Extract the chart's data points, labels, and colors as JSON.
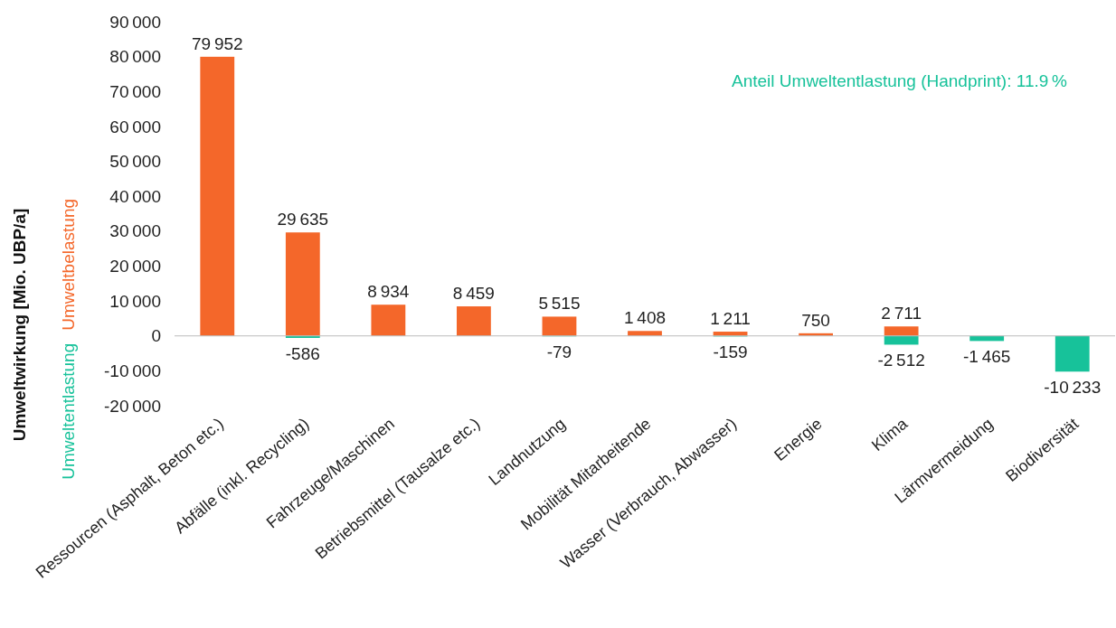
{
  "chart_data": {
    "type": "bar",
    "stacked": true,
    "ylabel": "Umweltwirkung [Mio. UBP/a]",
    "legend": "left",
    "categories": [
      "Ressourcen (Asphalt, Beton etc.)",
      "Abfälle (inkl. Recycling)",
      "Fahrzeuge/Maschinen",
      "Betriebsmittel (Tausalze etc.)",
      "Landnutzung",
      "Mobilität Mitarbeitende",
      "Wasser (Verbrauch, Abwasser)",
      "Energie",
      "Klima",
      "Lärmvermeidung",
      "Biodiversität"
    ],
    "series": [
      {
        "name": "Umweltbelastung",
        "color": "#f4672a",
        "values": [
          79952,
          29635,
          8934,
          8459,
          5515,
          1408,
          1211,
          750,
          2711,
          null,
          null
        ],
        "value_labels": [
          "79 952",
          "29 635",
          "8 934",
          "8 459",
          "5 515",
          "1 408",
          "1 211",
          "750",
          "2 711",
          null,
          null
        ]
      },
      {
        "name": "Umweltentlastung",
        "color": "#17c29a",
        "values": [
          null,
          -586,
          null,
          null,
          -79,
          null,
          -159,
          null,
          -2512,
          -1465,
          -10233
        ],
        "value_labels": [
          null,
          "-586",
          null,
          null,
          "-79",
          null,
          "-159",
          null,
          "-2 512",
          "-1 465",
          "-10 233"
        ]
      }
    ],
    "ylim": [
      -20000,
      90000
    ],
    "yticks": [
      {
        "value": -20000,
        "label": "-20 000"
      },
      {
        "value": -10000,
        "label": "-10 000"
      },
      0,
      {
        "value": 10000,
        "label": "10 000"
      },
      {
        "value": 20000,
        "label": "20 000"
      },
      {
        "value": 30000,
        "label": "30 000"
      },
      {
        "value": 40000,
        "label": "40 000"
      },
      {
        "value": 50000,
        "label": "50 000"
      },
      {
        "value": 60000,
        "label": "60 000"
      },
      {
        "value": 70000,
        "label": "70 000"
      },
      {
        "value": 80000,
        "label": "80 000"
      },
      {
        "value": 90000,
        "label": "90 000"
      }
    ],
    "annotations": [
      "Anteil Umweltentlastung (Handprint): 11.9 %"
    ]
  }
}
